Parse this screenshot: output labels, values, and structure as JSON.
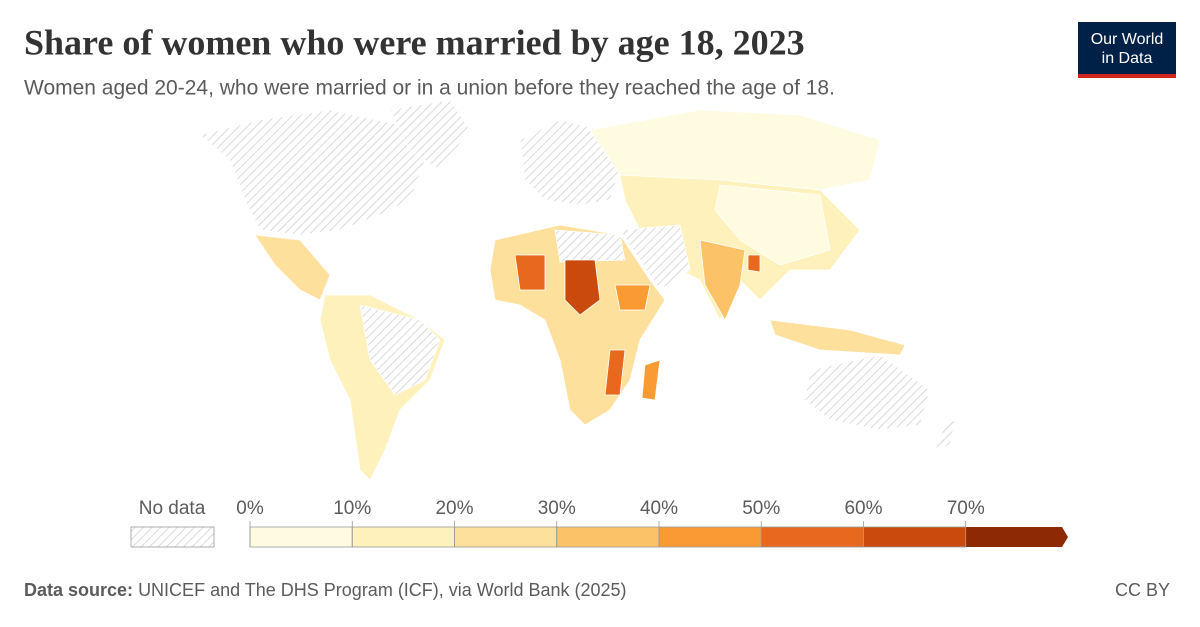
{
  "chart_data": {
    "type": "choropleth",
    "title": "Share of women who were married by age 18, 2023",
    "subtitle": "Women aged 20-24, who were married or in a union before they reached the age of 18.",
    "no_data_label": "No data",
    "legend_colors": [
      "#fefbe0",
      "#fef1bb",
      "#fde09c",
      "#fcc267",
      "#f99a33",
      "#e8691d",
      "#c94a0c",
      "#8d2a05"
    ],
    "xlim": [
      0,
      80
    ],
    "xticks": [
      {
        "value": 0,
        "label": "0%"
      },
      {
        "value": 10,
        "label": "10%"
      },
      {
        "value": 20,
        "label": "20%"
      },
      {
        "value": 30,
        "label": "30%"
      },
      {
        "value": 40,
        "label": "40%"
      },
      {
        "value": 50,
        "label": "50%"
      },
      {
        "value": 60,
        "label": "60%"
      },
      {
        "value": 70,
        "label": "70%"
      }
    ],
    "source_label": "Data source:",
    "source": "UNICEF and The DHS Program (ICF), via World Bank (2025)",
    "license": "CC BY",
    "logo": [
      "Our World",
      "in Data"
    ]
  }
}
